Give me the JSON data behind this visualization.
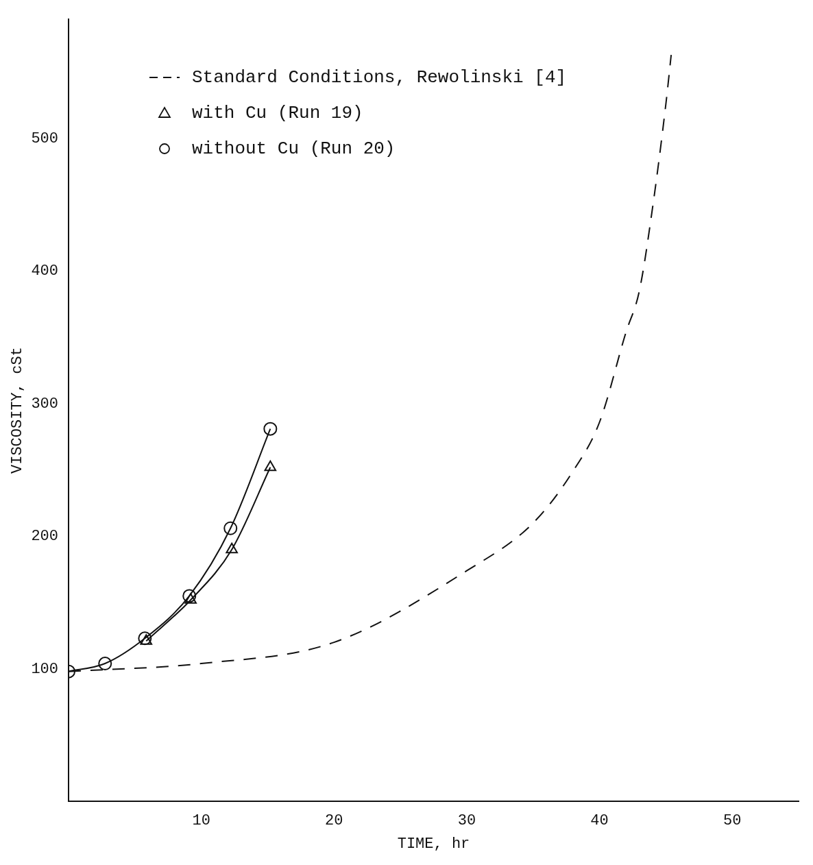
{
  "chart_data": {
    "type": "line",
    "xlabel": "TIME, hr",
    "ylabel": "VISCOSITY, cSt",
    "xlim": [
      0,
      55
    ],
    "ylim": [
      0,
      590
    ],
    "xticks": [
      10,
      20,
      30,
      40,
      50
    ],
    "yticks": [
      100,
      200,
      300,
      400,
      500
    ],
    "legend": "top left",
    "grid": false,
    "series": [
      {
        "name": "Standard Conditions, Rewolinski [4]",
        "color": "#111111",
        "marker": "none",
        "line_style": "dashed",
        "x": [
          0,
          10,
          20,
          30,
          35,
          38,
          40,
          42,
          43,
          44,
          45,
          45.4
        ],
        "values": [
          98,
          104,
          120,
          174,
          210,
          249,
          286,
          354,
          385,
          448,
          526,
          563
        ]
      },
      {
        "name": "with Cu (Run 19)",
        "color": "#111111",
        "marker": "triangle",
        "line_style": "solid",
        "x": [
          5.85,
          9.2,
          12.3,
          15.2
        ],
        "values": [
          121,
          152,
          190,
          252
        ]
      },
      {
        "name": "without Cu (Run 20)",
        "color": "#111111",
        "marker": "circle",
        "line_style": "solid",
        "x": [
          0,
          2.75,
          5.75,
          9.1,
          12.2,
          15.2
        ],
        "values": [
          98,
          104,
          123,
          155,
          206,
          281
        ]
      }
    ]
  }
}
